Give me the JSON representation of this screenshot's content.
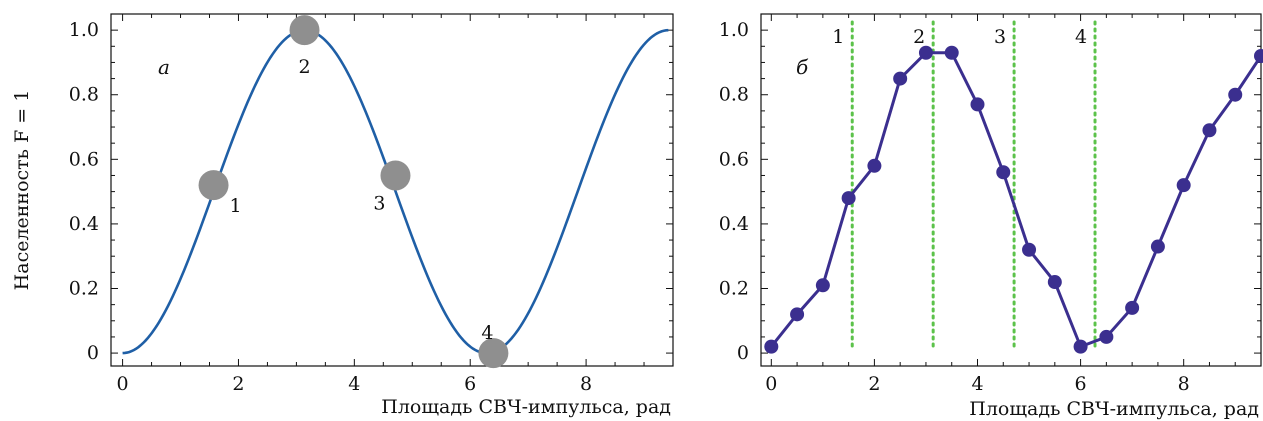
{
  "ylabel": "Населенность F = 1",
  "chart_data": [
    {
      "panel_label": "а",
      "type": "line",
      "xlabel": "Площадь СВЧ-импульса, рад",
      "xlim": [
        -0.2,
        9.5
      ],
      "ylim": [
        -0.04,
        1.05
      ],
      "xticks": [
        "0",
        "2",
        "4",
        "6",
        "8"
      ],
      "yticks": [
        "0",
        "0.2",
        "0.4",
        "0.6",
        "0.8",
        "1.0"
      ],
      "xtick_values": [
        0,
        2,
        4,
        6,
        8
      ],
      "ytick_values": [
        0,
        0.2,
        0.4,
        0.6,
        0.8,
        1.0
      ],
      "curve": {
        "formula": "sin^2(x/2)",
        "x_range": [
          0,
          9.42
        ],
        "color": "#1f5fa6"
      },
      "markers": [
        {
          "label": "1",
          "x": 1.57,
          "y": 0.52
        },
        {
          "label": "2",
          "x": 3.14,
          "y": 1.0
        },
        {
          "label": "3",
          "x": 4.71,
          "y": 0.55
        },
        {
          "label": "4",
          "x": 6.4,
          "y": 0.0
        }
      ],
      "marker_color": "#8f8f8f"
    },
    {
      "panel_label": "б",
      "type": "line",
      "xlabel": "Площадь СВЧ-импульса, рад",
      "xlim": [
        -0.2,
        9.5
      ],
      "ylim": [
        -0.04,
        1.05
      ],
      "xticks": [
        "0",
        "2",
        "4",
        "6",
        "8"
      ],
      "yticks": [
        "0",
        "0.2",
        "0.4",
        "0.6",
        "0.8",
        "1.0"
      ],
      "xtick_values": [
        0,
        2,
        4,
        6,
        8
      ],
      "ytick_values": [
        0,
        0.2,
        0.4,
        0.6,
        0.8,
        1.0
      ],
      "series": [
        {
          "x": [
            0,
            0.5,
            1.0,
            1.5,
            2.0,
            2.5,
            3.0,
            3.5,
            4.0,
            4.5,
            5.0,
            5.5,
            6.0,
            6.5,
            7.0,
            7.5,
            8.0,
            8.5,
            9.0,
            9.5
          ],
          "y": [
            0.02,
            0.12,
            0.21,
            0.48,
            0.58,
            0.85,
            0.93,
            0.93,
            0.77,
            0.56,
            0.32,
            0.22,
            0.02,
            0.05,
            0.14,
            0.33,
            0.52,
            0.69,
            0.8,
            0.92
          ],
          "color": "#3b2f8f"
        }
      ],
      "vlines": [
        {
          "label": "1",
          "x": 1.57
        },
        {
          "label": "2",
          "x": 3.14
        },
        {
          "label": "3",
          "x": 4.71
        },
        {
          "label": "4",
          "x": 6.28
        }
      ],
      "vline_color": "#5cc24a"
    }
  ]
}
